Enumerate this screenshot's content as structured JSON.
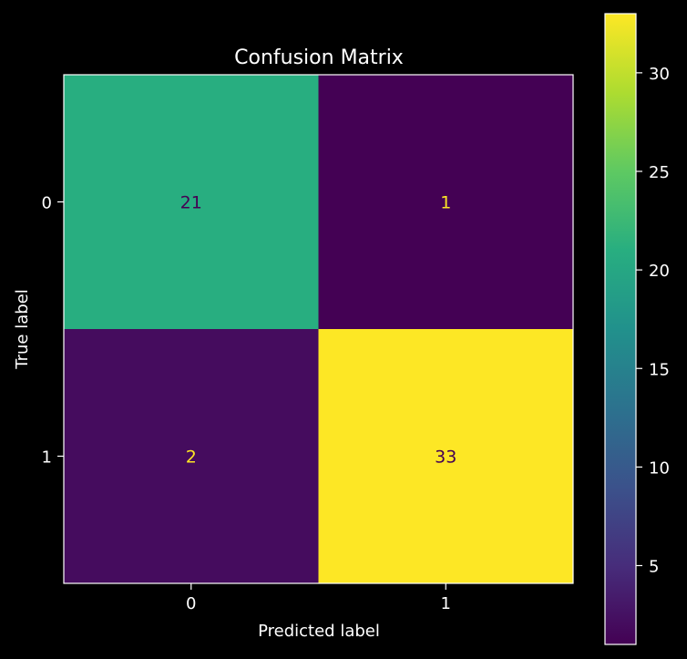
{
  "chart_data": {
    "type": "heatmap",
    "title": "Confusion Matrix",
    "xlabel": "Predicted label",
    "ylabel": "True label",
    "x_categories": [
      "0",
      "1"
    ],
    "y_categories": [
      "0",
      "1"
    ],
    "values": [
      [
        21,
        1
      ],
      [
        2,
        33
      ]
    ],
    "colormap": "viridis",
    "colorbar": {
      "range": [
        1,
        33
      ],
      "ticks": [
        5,
        10,
        15,
        20,
        25,
        30
      ]
    },
    "colors": {
      "background": "#000000",
      "foreground": "#ffffff",
      "cell_21": "#2db27d",
      "cell_1": "#440154",
      "cell_2": "#471164",
      "cell_33": "#fde725",
      "text_on_dark": "#fde725",
      "text_on_light": "#440154"
    }
  }
}
